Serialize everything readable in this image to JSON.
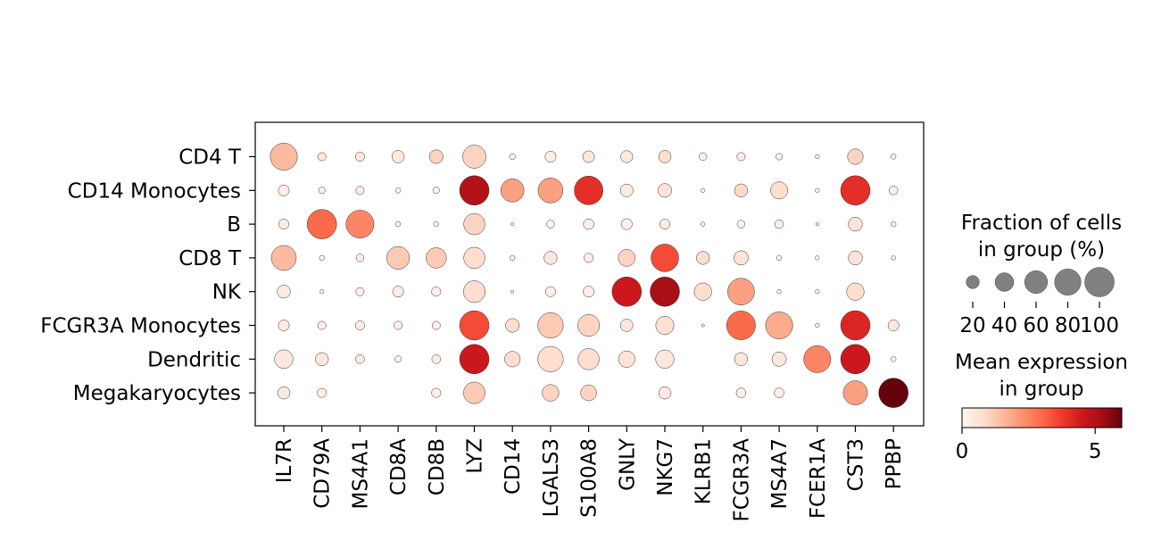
{
  "chart_data": {
    "type": "dotplot",
    "genes": [
      "IL7R",
      "CD79A",
      "MS4A1",
      "CD8A",
      "CD8B",
      "LYZ",
      "CD14",
      "LGALS3",
      "S100A8",
      "GNLY",
      "NKG7",
      "KLRB1",
      "FCGR3A",
      "MS4A7",
      "FCER1A",
      "CST3",
      "PPBP"
    ],
    "groups": [
      "CD4 T",
      "CD14 Monocytes",
      "B",
      "CD8 T",
      "NK",
      "FCGR3A Monocytes",
      "Dendritic",
      "Megakaryocytes"
    ],
    "fraction_pct": [
      [
        85,
        8,
        10,
        18,
        22,
        62,
        4,
        14,
        16,
        17,
        18,
        7,
        8,
        5,
        2,
        28,
        3
      ],
      [
        14,
        5,
        8,
        3,
        5,
        100,
        62,
        72,
        95,
        19,
        22,
        2,
        20,
        34,
        2,
        100,
        9
      ],
      [
        12,
        100,
        90,
        3,
        3,
        52,
        1,
        7,
        13,
        14,
        12,
        2,
        7,
        9,
        1,
        23,
        3
      ],
      [
        72,
        3,
        7,
        60,
        48,
        52,
        3,
        20,
        10,
        33,
        88,
        20,
        24,
        3,
        2,
        23,
        2
      ],
      [
        20,
        2,
        8,
        14,
        10,
        55,
        1,
        12,
        14,
        100,
        100,
        35,
        83,
        2,
        2,
        35,
        0
      ],
      [
        14,
        8,
        10,
        8,
        8,
        100,
        22,
        75,
        55,
        18,
        38,
        1,
        96,
        85,
        2,
        100,
        14
      ],
      [
        40,
        20,
        9,
        5,
        9,
        100,
        28,
        75,
        52,
        31,
        39,
        0,
        20,
        24,
        85,
        100,
        3
      ],
      [
        18,
        10,
        0,
        0,
        10,
        54,
        0,
        32,
        29,
        0,
        18,
        0,
        11,
        11,
        0,
        68,
        100
      ]
    ],
    "mean_expression": [
      [
        1.5,
        0.5,
        0.5,
        0.5,
        1.0,
        1.0,
        0.2,
        0.3,
        0.5,
        0.4,
        0.8,
        0.2,
        0.3,
        0.2,
        0.1,
        1.0,
        0.2
      ],
      [
        0.3,
        0.2,
        0.3,
        0.1,
        0.1,
        5.0,
        2.0,
        2.0,
        4.0,
        0.3,
        0.6,
        0.1,
        0.9,
        0.8,
        0.1,
        4.0,
        0.2
      ],
      [
        0.3,
        3.0,
        2.5,
        0.1,
        0.1,
        1.0,
        0.0,
        0.1,
        0.2,
        0.2,
        0.3,
        0.1,
        0.1,
        0.2,
        0.0,
        0.6,
        0.1
      ],
      [
        1.5,
        0.1,
        0.2,
        1.2,
        1.2,
        0.8,
        0.1,
        0.5,
        0.3,
        1.0,
        3.5,
        0.8,
        0.6,
        0.1,
        0.1,
        0.6,
        0.1
      ],
      [
        0.4,
        0.1,
        0.2,
        0.3,
        0.2,
        0.8,
        0.0,
        0.2,
        0.2,
        4.5,
        5.2,
        0.8,
        2.0,
        0.1,
        0.1,
        0.8,
        0.0
      ],
      [
        0.4,
        0.3,
        0.3,
        0.2,
        0.2,
        3.5,
        0.8,
        1.2,
        1.0,
        0.5,
        0.7,
        0.1,
        3.0,
        1.8,
        0.1,
        4.2,
        0.5
      ],
      [
        0.5,
        0.5,
        0.3,
        0.1,
        0.2,
        4.5,
        0.8,
        0.8,
        0.8,
        0.6,
        0.5,
        0.0,
        0.5,
        0.5,
        2.5,
        4.5,
        0.1
      ],
      [
        0.4,
        0.3,
        0.0,
        0.0,
        0.2,
        1.2,
        0.0,
        1.0,
        1.0,
        0.0,
        0.4,
        0.0,
        0.2,
        0.2,
        0.0,
        2.0,
        6.0
      ]
    ],
    "size_legend": {
      "title": "Fraction of cells\nin group (%)",
      "values": [
        20,
        40,
        60,
        80,
        100
      ]
    },
    "color_legend": {
      "title": "Mean expression\nin group",
      "range": [
        0,
        6
      ],
      "ticks": [
        0,
        5
      ],
      "colormap": "Reds"
    }
  }
}
